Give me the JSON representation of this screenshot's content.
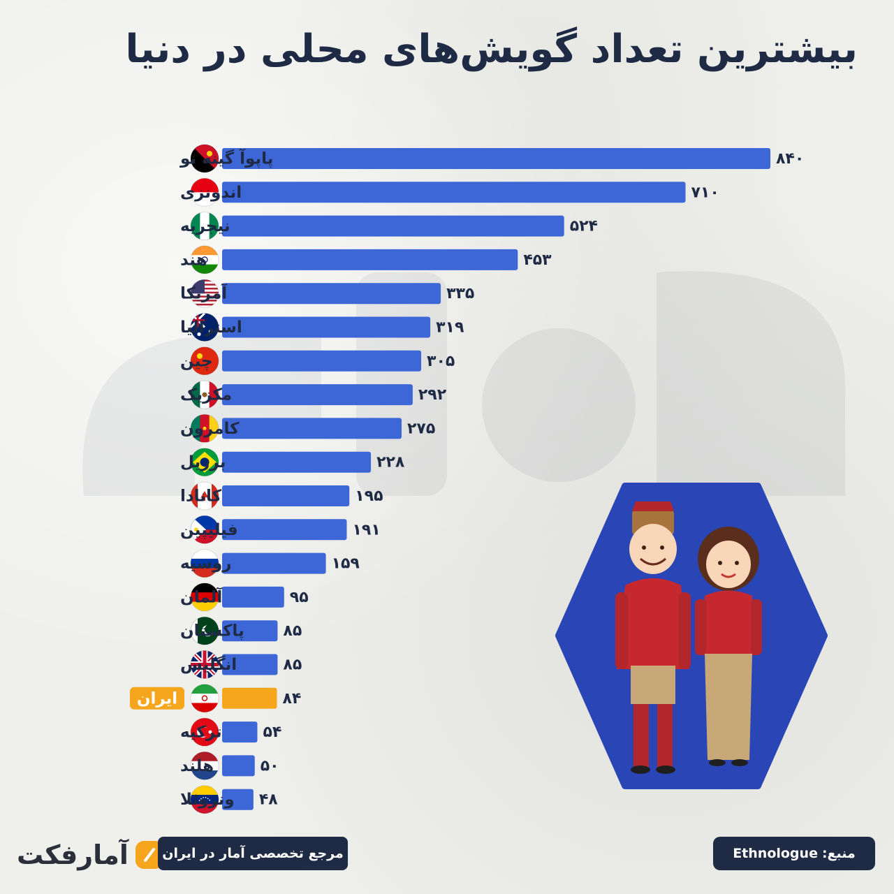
{
  "title": "بیشترین تعداد گویش‌های محلی در دنیا",
  "colors": {
    "bar": "#3d67d6",
    "highlight": "#f6a61c",
    "title": "#1f2a44",
    "hexagon": "#2a45b5"
  },
  "chart_data": {
    "type": "bar",
    "orientation": "horizontal",
    "title": "بیشترین تعداد گویش‌های محلی در دنیا",
    "categories": [
      "پاپوآ گینه نو",
      "اندونزی",
      "نیجریه",
      "هند",
      "آمریکا",
      "استرالیا",
      "چین",
      "مکزیک",
      "کامرون",
      "برزیل",
      "کانادا",
      "فیلیپین",
      "روسیه",
      "آلمان",
      "پاکستان",
      "انگلیس",
      "ایران",
      "ترکیه",
      "هلند",
      "ونزوئلا"
    ],
    "values": [
      840,
      710,
      524,
      453,
      335,
      319,
      305,
      292,
      275,
      228,
      195,
      191,
      159,
      95,
      85,
      85,
      84,
      54,
      50,
      48
    ],
    "value_labels": [
      "۸۴۰",
      "۷۱۰",
      "۵۲۴",
      "۴۵۳",
      "۳۳۵",
      "۳۱۹",
      "۳۰۵",
      "۲۹۲",
      "۲۷۵",
      "۲۲۸",
      "۱۹۵",
      "۱۹۱",
      "۱۵۹",
      "۹۵",
      "۸۵",
      "۸۵",
      "۸۴",
      "۵۴",
      "۵۰",
      "۴۸"
    ],
    "flags": [
      "papua-new-guinea-flag-icon",
      "indonesia-flag-icon",
      "nigeria-flag-icon",
      "india-flag-icon",
      "usa-flag-icon",
      "australia-flag-icon",
      "china-flag-icon",
      "mexico-flag-icon",
      "cameroon-flag-icon",
      "brazil-flag-icon",
      "canada-flag-icon",
      "philippines-flag-icon",
      "russia-flag-icon",
      "germany-flag-icon",
      "pakistan-flag-icon",
      "uk-flag-icon",
      "iran-flag-icon",
      "turkey-flag-icon",
      "netherlands-flag-icon",
      "venezuela-flag-icon"
    ],
    "highlight": "ایران",
    "xlim": [
      0,
      840
    ],
    "grid": false,
    "legend": "none"
  },
  "footer": {
    "brand": "آمارفکت",
    "reference": "مرجع تخصصی آمار در ایران",
    "source_label": "منبع:",
    "source_name": "Ethnologue"
  }
}
